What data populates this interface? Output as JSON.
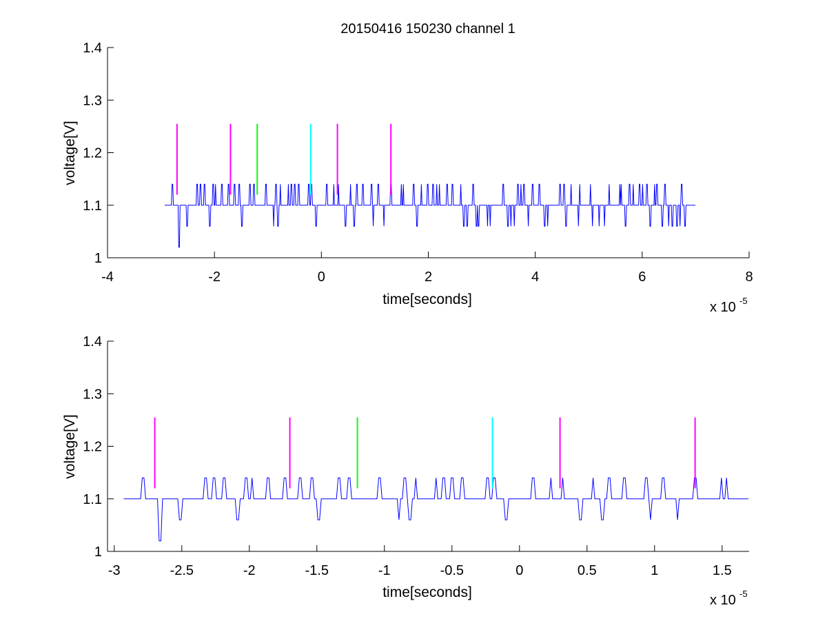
{
  "chart_data": [
    {
      "type": "line",
      "title": "20150416 150230 channel 1",
      "xlabel": "time[seconds]",
      "ylabel": "voltage[V]",
      "x_exponent_label": "x 10",
      "x_exponent": "-5",
      "xlim": [
        -4,
        8
      ],
      "ylim": [
        1,
        1.4
      ],
      "x_ticks": [
        -4,
        -2,
        0,
        2,
        4,
        6,
        8
      ],
      "x_tick_labels": [
        "-4",
        "-2",
        "0",
        "2",
        "4",
        "6",
        "8"
      ],
      "y_ticks": [
        1,
        1.1,
        1.2,
        1.3,
        1.4
      ],
      "y_tick_labels": [
        "1",
        "1.1",
        "1.2",
        "1.3",
        "1.4"
      ],
      "grid": false,
      "series": [
        {
          "type": "noise",
          "color": "#0000ff",
          "x_start": -2.93,
          "x_end": 7.0,
          "baseline": 1.1,
          "high_level": 1.14,
          "low_level": 1.06,
          "min_value": 1.02,
          "min_at": -2.66
        }
      ],
      "markers": [
        {
          "x": -2.7,
          "y_from": 1.12,
          "y_to": 1.255,
          "color": "#ff00ff"
        },
        {
          "x": -1.7,
          "y_from": 1.12,
          "y_to": 1.255,
          "color": "#ff00ff"
        },
        {
          "x": -1.2,
          "y_from": 1.12,
          "y_to": 1.255,
          "color": "#00ff00"
        },
        {
          "x": -0.2,
          "y_from": 1.12,
          "y_to": 1.255,
          "color": "#00ffff"
        },
        {
          "x": 0.3,
          "y_from": 1.12,
          "y_to": 1.255,
          "color": "#ff00ff"
        },
        {
          "x": 1.3,
          "y_from": 1.12,
          "y_to": 1.255,
          "color": "#ff00ff"
        }
      ]
    },
    {
      "type": "line",
      "title": "",
      "xlabel": "time[seconds]",
      "ylabel": "voltage[V]",
      "x_exponent_label": "x 10",
      "x_exponent": "-5",
      "xlim": [
        -3.05,
        1.7
      ],
      "ylim": [
        1,
        1.4
      ],
      "x_ticks": [
        -3,
        -2.5,
        -2,
        -1.5,
        -1,
        -0.5,
        0,
        0.5,
        1,
        1.5
      ],
      "x_tick_labels": [
        "-3",
        "-2.5",
        "-2",
        "-1.5",
        "-1",
        "-0.5",
        "0",
        "0.5",
        "1",
        "1.5"
      ],
      "y_ticks": [
        1,
        1.1,
        1.2,
        1.3,
        1.4
      ],
      "y_tick_labels": [
        "1",
        "1.1",
        "1.2",
        "1.3",
        "1.4"
      ],
      "grid": false,
      "series": [
        {
          "type": "noise",
          "color": "#0000ff",
          "x_start": -2.93,
          "x_end": 1.7,
          "baseline": 1.1,
          "high_level": 1.14,
          "low_level": 1.06,
          "min_value": 1.02,
          "min_at": -2.66
        }
      ],
      "markers": [
        {
          "x": -2.7,
          "y_from": 1.12,
          "y_to": 1.255,
          "color": "#ff00ff"
        },
        {
          "x": -1.7,
          "y_from": 1.12,
          "y_to": 1.255,
          "color": "#ff00ff"
        },
        {
          "x": -1.2,
          "y_from": 1.12,
          "y_to": 1.255,
          "color": "#00ff00"
        },
        {
          "x": -0.2,
          "y_from": 1.12,
          "y_to": 1.255,
          "color": "#00ffff"
        },
        {
          "x": 0.3,
          "y_from": 1.12,
          "y_to": 1.255,
          "color": "#ff00ff"
        },
        {
          "x": 1.3,
          "y_from": 1.12,
          "y_to": 1.255,
          "color": "#ff00ff"
        }
      ]
    }
  ]
}
